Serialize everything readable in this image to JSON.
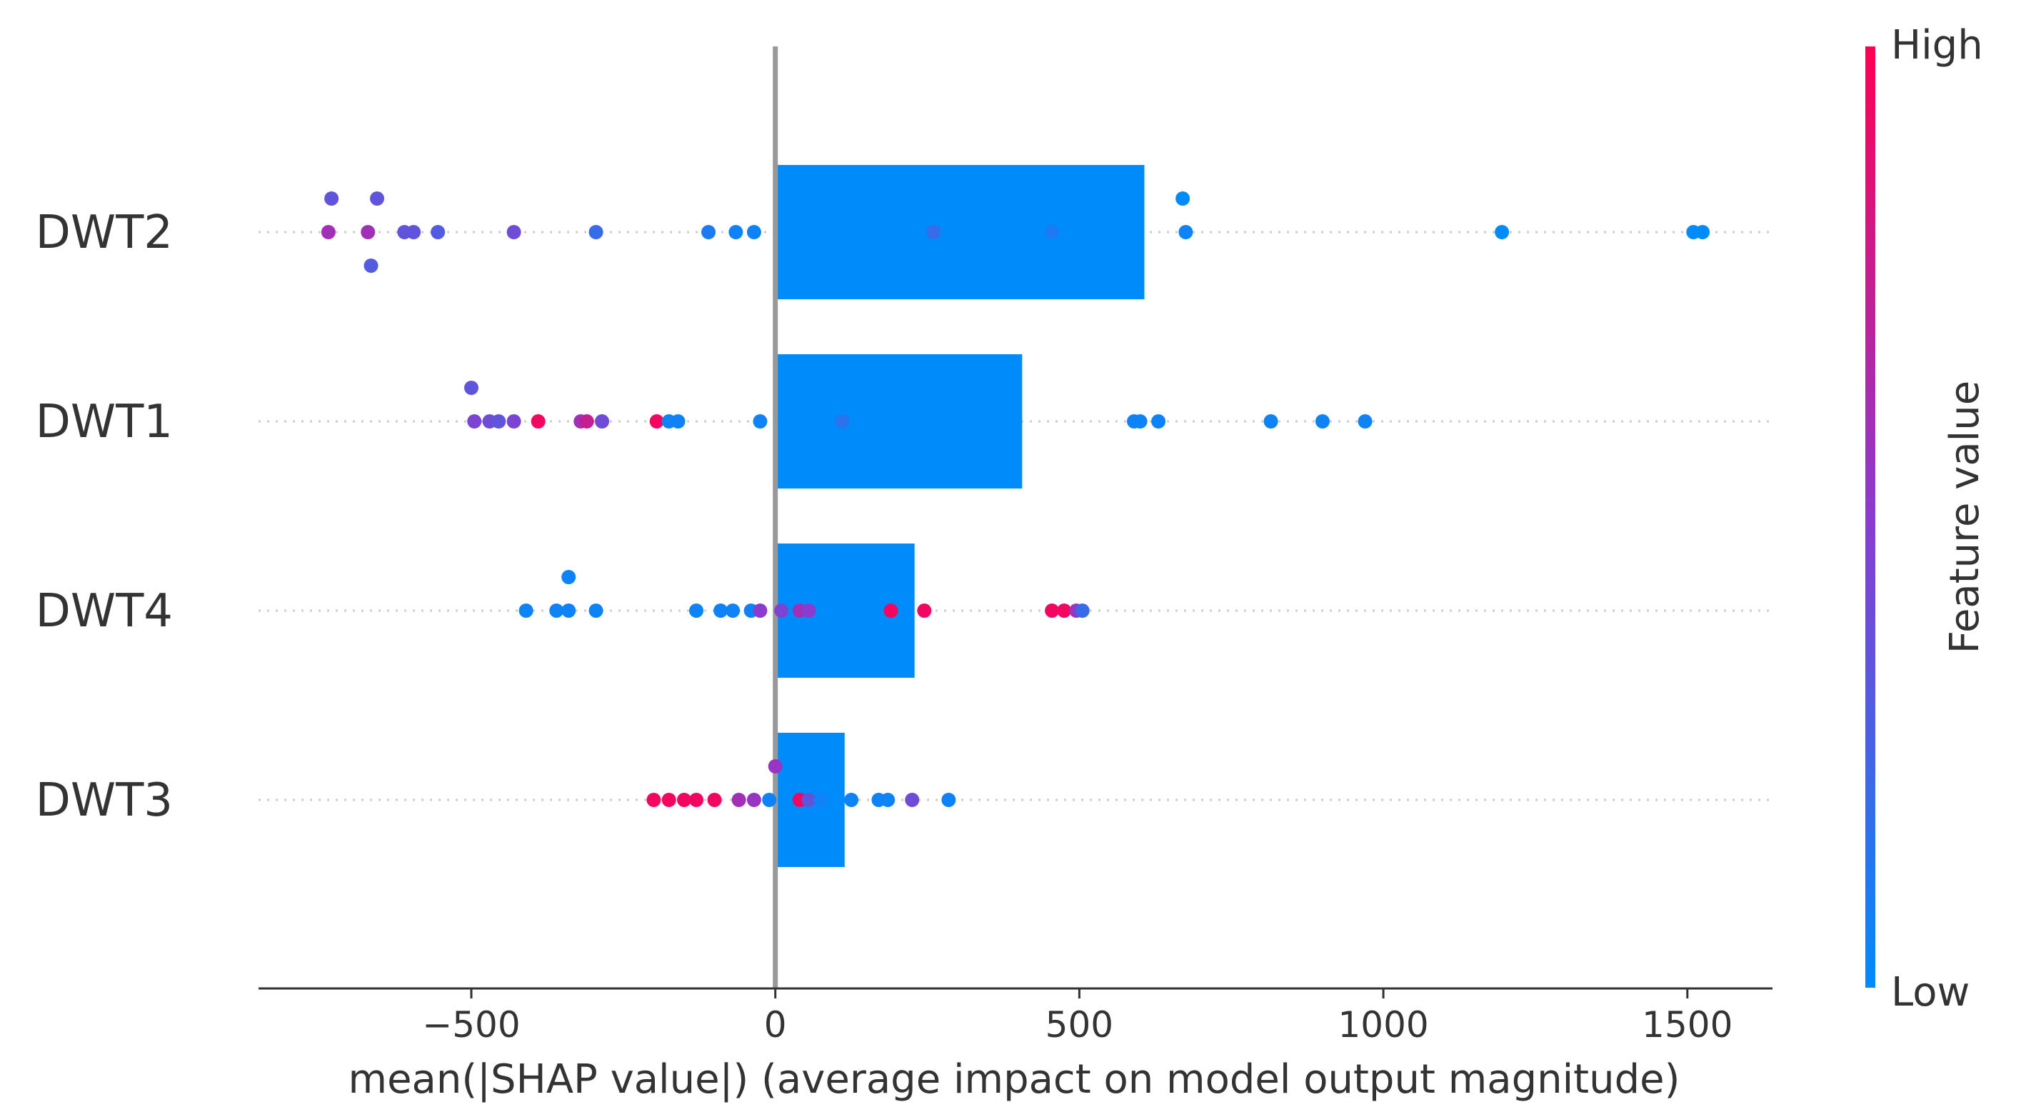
{
  "chart_data": {
    "type": "bar",
    "overlay": "scatter",
    "title": "",
    "xlabel": "mean(|SHAP value|) (average impact on model output magnitude)",
    "ylabel": "",
    "xlim": [
      -850,
      1640
    ],
    "xticks": [
      -500,
      0,
      500,
      1000,
      1500
    ],
    "xtick_labels": [
      "−500",
      "0",
      "500",
      "1000",
      "1500"
    ],
    "grid": false,
    "categories": [
      "DWT2",
      "DWT1",
      "DWT4",
      "DWT3"
    ],
    "values": [
      607,
      406,
      229,
      114
    ],
    "bar_color": "#008bfb",
    "colorbar": {
      "label": "Feature value",
      "high_label": "High",
      "low_label": "Low",
      "high_color": "#ff0052",
      "low_color": "#008bfb",
      "mid_color": "#8a3ccf"
    },
    "points": [
      {
        "feature": "DWT2",
        "points": [
          [
            -730,
            0.35
          ],
          [
            -655,
            0.35
          ],
          [
            -735,
            0.6
          ],
          [
            -670,
            0.6
          ],
          [
            -610,
            0.35
          ],
          [
            -595,
            0.35
          ],
          [
            -555,
            0.3
          ],
          [
            -430,
            0.4
          ],
          [
            -295,
            0.2
          ],
          [
            -110,
            0.1
          ],
          [
            -65,
            0.05
          ],
          [
            -35,
            0.05
          ],
          [
            260,
            0.2
          ],
          [
            455,
            0.1
          ],
          [
            670,
            0.0
          ],
          [
            675,
            0.05
          ],
          [
            1195,
            0.0
          ],
          [
            1510,
            0.0
          ],
          [
            1525,
            0.0
          ],
          [
            -665,
            0.3
          ]
        ],
        "jitter": [
          -1,
          -1,
          0,
          0,
          0,
          0,
          0,
          0,
          0,
          0,
          0,
          0,
          0,
          0,
          -1,
          0,
          0,
          0,
          0,
          1
        ]
      },
      {
        "feature": "DWT1",
        "points": [
          [
            -500,
            0.35
          ],
          [
            -495,
            0.45
          ],
          [
            -470,
            0.4
          ],
          [
            -455,
            0.35
          ],
          [
            -430,
            0.45
          ],
          [
            -390,
            0.95
          ],
          [
            -320,
            0.6
          ],
          [
            -310,
            0.75
          ],
          [
            -285,
            0.4
          ],
          [
            -195,
            0.95
          ],
          [
            -175,
            0.05
          ],
          [
            -160,
            0.05
          ],
          [
            -25,
            0.05
          ],
          [
            110,
            0.15
          ],
          [
            590,
            0.05
          ],
          [
            600,
            0.05
          ],
          [
            630,
            0.05
          ],
          [
            815,
            0.05
          ],
          [
            900,
            0.05
          ],
          [
            970,
            0.05
          ]
        ],
        "jitter": [
          -1,
          0,
          0,
          0,
          0,
          0,
          0,
          0,
          0,
          0,
          0,
          0,
          0,
          0,
          0,
          0,
          0,
          0,
          0,
          0
        ]
      },
      {
        "feature": "DWT4",
        "points": [
          [
            -340,
            0.05
          ],
          [
            -410,
            0.05
          ],
          [
            -360,
            0.05
          ],
          [
            -340,
            0.05
          ],
          [
            -295,
            0.05
          ],
          [
            -130,
            0.05
          ],
          [
            -90,
            0.05
          ],
          [
            -70,
            0.05
          ],
          [
            -40,
            0.05
          ],
          [
            -25,
            0.5
          ],
          [
            10,
            0.45
          ],
          [
            40,
            0.6
          ],
          [
            55,
            0.5
          ],
          [
            190,
            0.95
          ],
          [
            245,
            0.95
          ],
          [
            455,
            0.95
          ],
          [
            475,
            0.95
          ],
          [
            495,
            0.55
          ],
          [
            505,
            0.2
          ]
        ],
        "jitter": [
          -1,
          0,
          0,
          0,
          0,
          0,
          0,
          0,
          0,
          0,
          0,
          0,
          0,
          0,
          0,
          0,
          0,
          0,
          0
        ]
      },
      {
        "feature": "DWT3",
        "points": [
          [
            0,
            0.55
          ],
          [
            -200,
            0.95
          ],
          [
            -175,
            0.95
          ],
          [
            -150,
            0.95
          ],
          [
            -130,
            0.95
          ],
          [
            -100,
            0.95
          ],
          [
            -60,
            0.6
          ],
          [
            -35,
            0.55
          ],
          [
            -10,
            0.05
          ],
          [
            40,
            0.95
          ],
          [
            55,
            0.35
          ],
          [
            75,
            0.05
          ],
          [
            125,
            0.05
          ],
          [
            170,
            0.05
          ],
          [
            185,
            0.05
          ],
          [
            225,
            0.4
          ],
          [
            285,
            0.05
          ]
        ],
        "jitter": [
          -1,
          0,
          0,
          0,
          0,
          0,
          0,
          0,
          0,
          0,
          0,
          0,
          0,
          0,
          0,
          0,
          0
        ]
      }
    ]
  }
}
